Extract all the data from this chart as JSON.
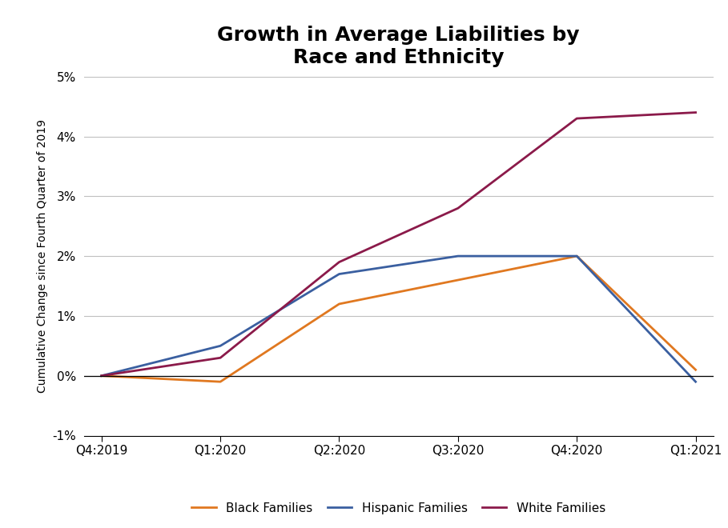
{
  "title": "Growth in Average Liabilities by\nRace and Ethnicity",
  "ylabel": "Cumulative Change since Fourth Quarter of 2019",
  "x_labels": [
    "Q4:2019",
    "Q1:2020",
    "Q2:2020",
    "Q3:2020",
    "Q4:2020",
    "Q1:2021"
  ],
  "black": [
    0.0,
    -0.001,
    0.012,
    0.016,
    0.02,
    0.001
  ],
  "hispanic": [
    0.0,
    0.005,
    0.017,
    0.02,
    0.02,
    -0.001
  ],
  "white": [
    0.0,
    0.003,
    0.019,
    0.028,
    0.043,
    0.044
  ],
  "black_color": "#E07820",
  "hispanic_color": "#3A5FA0",
  "white_color": "#8B1A4A",
  "ylim": [
    -0.01,
    0.05
  ],
  "yticks": [
    -0.01,
    0.0,
    0.01,
    0.02,
    0.03,
    0.04,
    0.05
  ],
  "legend_labels": [
    "Black Families",
    "Hispanic Families",
    "White Families"
  ],
  "footer_bg": "#1C3F5E",
  "footer_text_color": "#FFFFFF",
  "bg_color": "#FFFFFF",
  "grid_color": "#C0C0C0",
  "title_fontsize": 18,
  "axis_label_fontsize": 10,
  "tick_fontsize": 11,
  "legend_fontsize": 11,
  "linewidth": 2.0
}
